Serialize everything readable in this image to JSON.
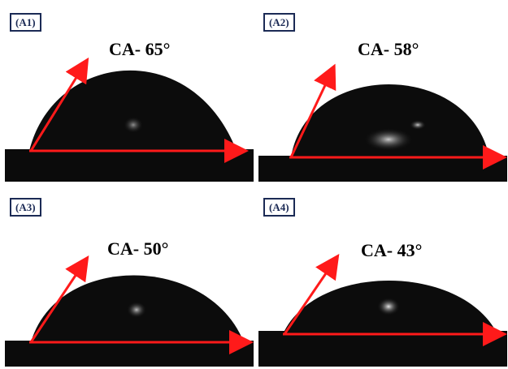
{
  "panels": [
    {
      "label": "(A1)",
      "angle_text": "CA- 65°",
      "angle_deg": 65
    },
    {
      "label": "(A2)",
      "angle_text": "CA- 58°",
      "angle_deg": 58
    },
    {
      "label": "(A3)",
      "angle_text": "CA- 50°",
      "angle_deg": 50
    },
    {
      "label": "(A4)",
      "angle_text": "CA- 43°",
      "angle_deg": 43
    }
  ],
  "colors": {
    "arrow": "#ff1a1a",
    "droplet": "#0a0a0a",
    "label_border": "#1b2a55"
  }
}
